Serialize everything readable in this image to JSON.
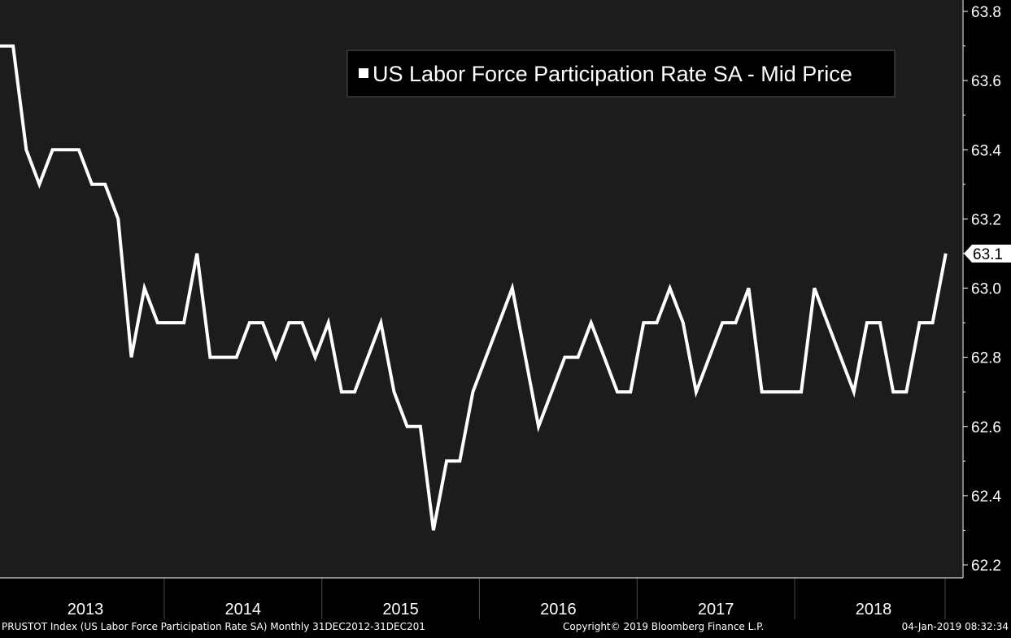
{
  "colors": {
    "plot_bg": "#1c1c1c",
    "outer_bg": "#000000",
    "line": "#ffffff",
    "grid": "#4a4a4a",
    "text": "#ffffff"
  },
  "chart_data": {
    "type": "line",
    "title": "",
    "xlabel": "",
    "ylabel": "",
    "legend": {
      "text": "US Labor Force Participation Rate SA - Mid Price",
      "placement": "top-center",
      "icon": "white-square"
    },
    "x_start": "2012-12",
    "frequency": "monthly",
    "x_tick_labels": [
      "2013",
      "2014",
      "2015",
      "2016",
      "2017",
      "2018"
    ],
    "y_tick_labels": [
      "62.2",
      "62.4",
      "62.6",
      "62.8",
      "63.0",
      "63.2",
      "63.4",
      "63.6",
      "63.8"
    ],
    "ylim": [
      62.2,
      63.8
    ],
    "grid": "vertical year separators only",
    "last_value_label": "63.1",
    "series": [
      {
        "name": "US Labor Force Participation Rate SA - Mid Price",
        "values": [
          63.7,
          63.7,
          63.4,
          63.3,
          63.4,
          63.4,
          63.4,
          63.3,
          63.3,
          63.2,
          62.8,
          63.0,
          62.9,
          62.9,
          62.9,
          63.1,
          62.8,
          62.8,
          62.8,
          62.9,
          62.9,
          62.8,
          62.9,
          62.9,
          62.8,
          62.9,
          62.7,
          62.7,
          62.8,
          62.9,
          62.7,
          62.6,
          62.6,
          62.3,
          62.5,
          62.5,
          62.7,
          62.8,
          62.9,
          63.0,
          62.8,
          62.6,
          62.7,
          62.8,
          62.8,
          62.9,
          62.8,
          62.7,
          62.7,
          62.9,
          62.9,
          63.0,
          62.9,
          62.7,
          62.8,
          62.9,
          62.9,
          63.0,
          62.7,
          62.7,
          62.7,
          62.7,
          63.0,
          62.9,
          62.8,
          62.7,
          62.9,
          62.9,
          62.7,
          62.7,
          62.9,
          62.9,
          63.1
        ]
      }
    ]
  },
  "footer": {
    "left": "PRUSTOT Index (US Labor Force Participation Rate SA)  Monthly 31DEC2012-31DEC201",
    "center": "Copyright© 2019 Bloomberg Finance L.P.",
    "right": "04-Jan-2019 08:32:34"
  }
}
